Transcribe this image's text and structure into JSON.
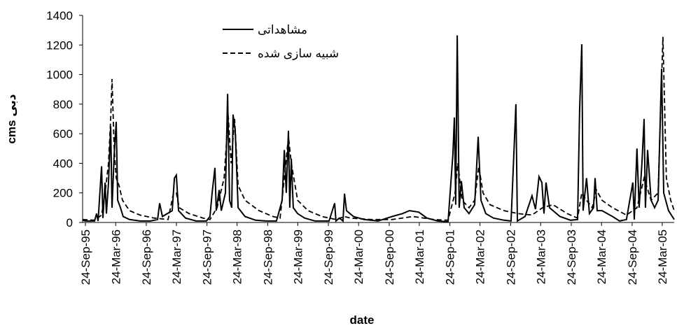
{
  "chart_data": {
    "type": "line",
    "x_label": "date",
    "y_label": "دبی cms",
    "xlim": [
      -17,
      3541
    ],
    "xticks": [
      {
        "value": 0,
        "label": "24-Sep-95"
      },
      {
        "value": 182,
        "label": "24-Mar-96"
      },
      {
        "value": 366,
        "label": "24-Sep-96"
      },
      {
        "value": 547,
        "label": "24-Mar-97"
      },
      {
        "value": 731,
        "label": "24-Sep-97"
      },
      {
        "value": 912,
        "label": "24-Mar-98"
      },
      {
        "value": 1096,
        "label": "24-Sep-98"
      },
      {
        "value": 1277,
        "label": "24-Mar-99"
      },
      {
        "value": 1461,
        "label": "24-Sep-99"
      },
      {
        "value": 1643,
        "label": "24-Mar-00"
      },
      {
        "value": 1827,
        "label": "24-Sep-00"
      },
      {
        "value": 2008,
        "label": "24-Mar-01"
      },
      {
        "value": 2192,
        "label": "24-Sep-01"
      },
      {
        "value": 2373,
        "label": "24-Mar-02"
      },
      {
        "value": 2557,
        "label": "24-Sep-02"
      },
      {
        "value": 2738,
        "label": "24-Mar-03"
      },
      {
        "value": 2922,
        "label": "24-Sep-03"
      },
      {
        "value": 3104,
        "label": "24-Mar-04"
      },
      {
        "value": 3288,
        "label": "24-Sep-04"
      },
      {
        "value": 3469,
        "label": "24-Mar-05"
      }
    ],
    "ylim": [
      0,
      1400
    ],
    "yticks": [
      0,
      200,
      400,
      600,
      800,
      1000,
      1200,
      1400
    ],
    "legend": "top",
    "series": [
      {
        "name": "مشاهداتی",
        "color": "#000000",
        "dash": "solid",
        "x": [
          -17,
          0,
          55,
          67,
          76,
          97,
          105,
          118,
          126,
          139,
          152,
          160,
          173,
          185,
          194,
          211,
          227,
          265,
          328,
          392,
          434,
          446,
          463,
          522,
          535,
          547,
          560,
          602,
          665,
          728,
          749,
          762,
          779,
          787,
          804,
          817,
          842,
          855,
          867,
          880,
          888,
          901,
          918,
          960,
          1023,
          1086,
          1149,
          1183,
          1196,
          1208,
          1221,
          1229,
          1238,
          1250,
          1276,
          1318,
          1381,
          1465,
          1499,
          1507,
          1528,
          1549,
          1558,
          1570,
          1612,
          1676,
          1760,
          1844,
          1907,
          1949,
          2004,
          2054,
          2118,
          2181,
          2210,
          2219,
          2227,
          2236,
          2248,
          2261,
          2278,
          2307,
          2341,
          2362,
          2379,
          2408,
          2454,
          2518,
          2560,
          2589,
          2598,
          2644,
          2686,
          2707,
          2728,
          2745,
          2758,
          2770,
          2791,
          2854,
          2918,
          2960,
          2972,
          2985,
          2993,
          3014,
          3031,
          3056,
          3065,
          3078,
          3107,
          3170,
          3212,
          3254,
          3292,
          3301,
          3317,
          3330,
          3347,
          3360,
          3368,
          3381,
          3402,
          3423,
          3444,
          3465,
          3478,
          3507,
          3541
        ],
        "values": [
          15,
          10,
          10,
          60,
          10,
          380,
          30,
          270,
          60,
          270,
          650,
          100,
          460,
          680,
          150,
          100,
          40,
          20,
          10,
          10,
          20,
          130,
          40,
          80,
          300,
          320,
          80,
          30,
          10,
          10,
          40,
          200,
          370,
          80,
          220,
          80,
          200,
          870,
          150,
          100,
          730,
          620,
          100,
          40,
          15,
          10,
          10,
          150,
          490,
          200,
          620,
          100,
          430,
          100,
          60,
          30,
          10,
          10,
          130,
          10,
          30,
          10,
          195,
          80,
          40,
          20,
          10,
          40,
          60,
          80,
          70,
          30,
          10,
          5,
          460,
          710,
          120,
          1265,
          100,
          280,
          100,
          60,
          120,
          580,
          150,
          60,
          30,
          15,
          10,
          800,
          10,
          40,
          180,
          90,
          310,
          270,
          60,
          270,
          100,
          40,
          15,
          20,
          760,
          1205,
          80,
          300,
          60,
          100,
          300,
          80,
          80,
          40,
          10,
          20,
          270,
          20,
          500,
          100,
          400,
          700,
          100,
          490,
          150,
          100,
          150,
          1040,
          200,
          80,
          20
        ]
      },
      {
        "name": "شبیه سازی شده",
        "color": "#000000",
        "dash": "dashed",
        "x": [
          -17,
          55,
          97,
          118,
          139,
          152,
          160,
          173,
          185,
          202,
          223,
          265,
          328,
          413,
          497,
          530,
          547,
          564,
          623,
          707,
          749,
          792,
          834,
          859,
          876,
          897,
          918,
          960,
          1044,
          1128,
          1171,
          1196,
          1221,
          1238,
          1276,
          1339,
          1423,
          1507,
          1558,
          1592,
          1718,
          1844,
          1970,
          2097,
          2181,
          2223,
          2240,
          2265,
          2307,
          2341,
          2366,
          2391,
          2433,
          2518,
          2602,
          2686,
          2749,
          2812,
          2897,
          2960,
          2985,
          3014,
          3048,
          3073,
          3107,
          3170,
          3254,
          3317,
          3360,
          3402,
          3444,
          3473,
          3494,
          3520,
          3541
        ],
        "values": [
          20,
          15,
          50,
          200,
          400,
          700,
          970,
          500,
          300,
          250,
          150,
          80,
          50,
          30,
          20,
          200,
          200,
          100,
          60,
          30,
          20,
          100,
          300,
          720,
          400,
          700,
          250,
          150,
          80,
          40,
          30,
          300,
          580,
          400,
          150,
          80,
          40,
          20,
          40,
          30,
          20,
          20,
          40,
          20,
          15,
          200,
          400,
          150,
          100,
          150,
          380,
          200,
          120,
          80,
          60,
          50,
          100,
          120,
          60,
          30,
          200,
          150,
          100,
          220,
          150,
          100,
          50,
          100,
          300,
          150,
          200,
          1255,
          300,
          150,
          80
        ]
      }
    ]
  }
}
